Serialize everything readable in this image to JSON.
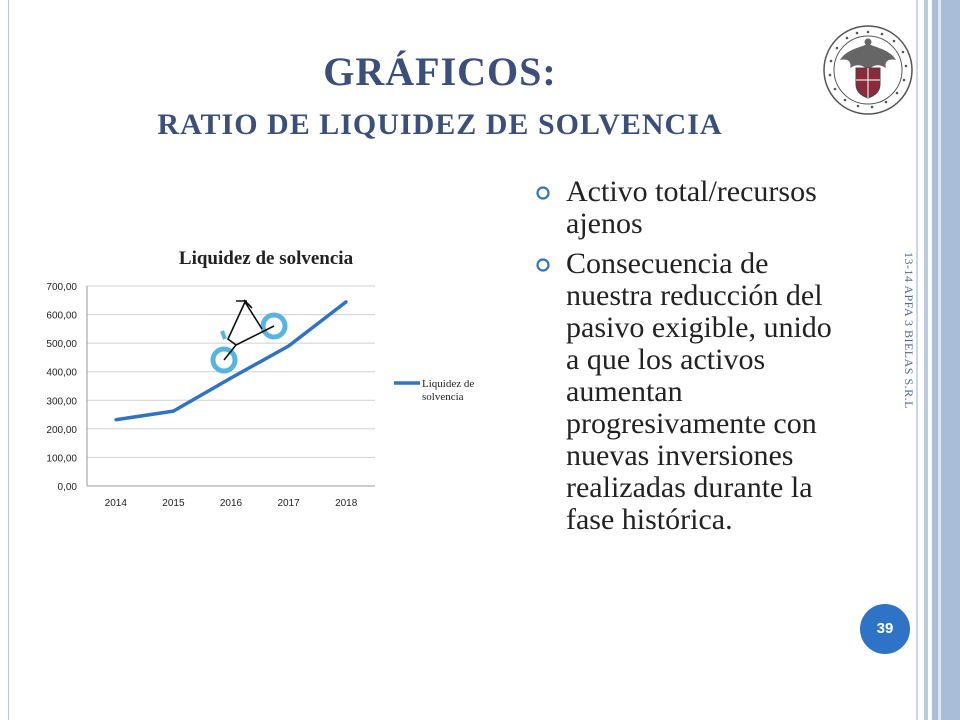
{
  "slide": {
    "title_line1": "GRÁFICOS:",
    "title_line2": "RATIO DE LIQUIDEZ DE SOLVENCIA",
    "side_text": "13-14 APFA 3 BIELAS S.R.L",
    "page_number": "39",
    "bullets": [
      "Activo total/recursos ajenos",
      "Consecuencia de nuestra reducción del pasivo exigible, unido a que los activos aumentan progresivamente con nuevas inversiones realizadas durante la fase histórica."
    ],
    "colors": {
      "title": "#3a4f7a",
      "accent": "#2f73c7",
      "frame": "#a9bcd8"
    },
    "icons": [
      "university-emblem-icon",
      "bullet-ring-icon",
      "bicycle-icon"
    ]
  },
  "chart_data": {
    "type": "line",
    "title": "Liquidez de solvencia",
    "categories": [
      "2014",
      "2015",
      "2016",
      "2017",
      "2018"
    ],
    "series": [
      {
        "name": "Liquidez de solvencia",
        "values": [
          232,
          262,
          378,
          490,
          645
        ],
        "color": "#2f73c7"
      }
    ],
    "ylim": [
      0,
      700
    ],
    "yticks": [
      "0,00",
      "100,00",
      "200,00",
      "300,00",
      "400,00",
      "500,00",
      "600,00",
      "700,00"
    ],
    "grid": true,
    "legend": "right"
  }
}
